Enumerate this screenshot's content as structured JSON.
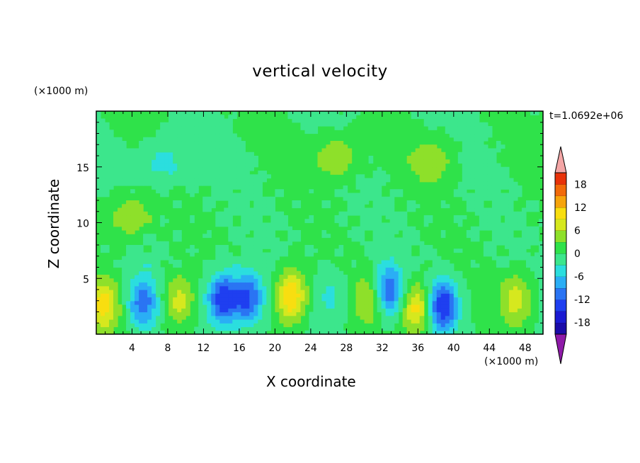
{
  "chart_data": {
    "type": "heatmap",
    "title": "vertical velocity",
    "xlabel": "X coordinate",
    "ylabel": "Z coordinate",
    "x_unit": "(×1000 m)",
    "y_unit": "(×1000 m)",
    "time_label": "t=1.0692e+06",
    "xlim": [
      0,
      50
    ],
    "ylim": [
      0,
      20
    ],
    "x_ticks": [
      4,
      8,
      12,
      16,
      20,
      24,
      28,
      32,
      36,
      40,
      44,
      48
    ],
    "y_ticks": [
      5,
      10,
      15
    ],
    "colorbar": {
      "levels": [
        -21,
        -18,
        -15,
        -12,
        -9,
        -6,
        -3,
        0,
        3,
        6,
        9,
        12,
        15,
        18,
        21
      ],
      "tick_labels": [
        18,
        12,
        6,
        0,
        -6,
        -12,
        -18
      ],
      "colors": [
        "#6a0dad",
        "#1a0ba8",
        "#1a1ad2",
        "#1f3ff0",
        "#2a74f3",
        "#2aaef5",
        "#2bdede",
        "#3ce68c",
        "#2fe24a",
        "#8ee02a",
        "#d6e81e",
        "#f8de10",
        "#f6a40c",
        "#f26a0a",
        "#e8320a",
        "#f4a6a6"
      ],
      "extend_low_color": "#8e1aa8",
      "extend_high_color": "#f4a6a6"
    },
    "features": [
      {
        "x": 0.8,
        "z": 2.6,
        "value": 10
      },
      {
        "x": 5.2,
        "z": 2.8,
        "value": -11
      },
      {
        "x": 9.2,
        "z": 3.0,
        "value": 8
      },
      {
        "x": 14.2,
        "z": 3.2,
        "value": -15
      },
      {
        "x": 17.0,
        "z": 3.2,
        "value": -13
      },
      {
        "x": 21.8,
        "z": 3.4,
        "value": 13
      },
      {
        "x": 26.4,
        "z": 3.5,
        "value": -4
      },
      {
        "x": 30.6,
        "z": 3.2,
        "value": 6
      },
      {
        "x": 32.8,
        "z": 3.9,
        "value": -12
      },
      {
        "x": 35.8,
        "z": 2.4,
        "value": 11
      },
      {
        "x": 38.8,
        "z": 2.6,
        "value": -15
      },
      {
        "x": 47.0,
        "z": 3.2,
        "value": 8
      },
      {
        "x": 3.6,
        "z": 10.6,
        "value": 6
      },
      {
        "x": 7.5,
        "z": 15.3,
        "value": -5
      },
      {
        "x": 26.8,
        "z": 15.9,
        "value": 6
      },
      {
        "x": 37.5,
        "z": 15.5,
        "value": 5
      }
    ]
  }
}
